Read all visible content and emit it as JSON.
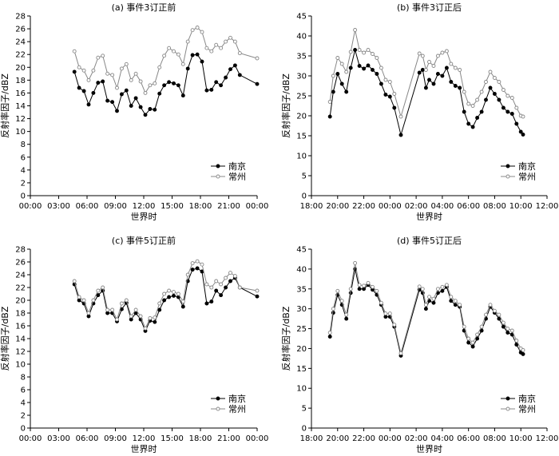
{
  "figure": {
    "panels": [
      {
        "title": "(a) 事件3订正前",
        "xlabel": "世界时",
        "ylabel": "反射率因子/dBZ",
        "yticks": [
          "0",
          "2",
          "4",
          "6",
          "8",
          "10",
          "12",
          "14",
          "16",
          "18",
          "20",
          "22",
          "24",
          "26",
          "28"
        ],
        "xticks": [
          "00:00",
          "03:00",
          "06:00",
          "09:00",
          "12:00",
          "15:00",
          "18:00",
          "21:00",
          "00:00"
        ],
        "legend": [
          "南京",
          "常州"
        ]
      },
      {
        "title": "(b) 事件3订正后",
        "xlabel": "世界时",
        "ylabel": "反射率因子/dBZ",
        "yticks": [
          "0",
          "5",
          "10",
          "15",
          "20",
          "25",
          "30",
          "35",
          "40",
          "45"
        ],
        "xticks": [
          "18:00",
          "20:00",
          "22:00",
          "00:00",
          "02:00",
          "04:00",
          "06:00",
          "08:00",
          "10:00",
          "12:00"
        ],
        "legend": [
          "南京",
          "常州"
        ]
      },
      {
        "title": "(c) 事件5订正前",
        "xlabel": "世界时",
        "ylabel": "反射率因子/dBZ",
        "yticks": [
          "0",
          "2",
          "4",
          "6",
          "8",
          "10",
          "12",
          "14",
          "16",
          "18",
          "20",
          "22",
          "24",
          "26",
          "28"
        ],
        "xticks": [
          "00:00",
          "03:00",
          "06:00",
          "09:00",
          "12:00",
          "15:00",
          "18:00",
          "21:00",
          "00:00"
        ],
        "legend": [
          "南京",
          "常州"
        ]
      },
      {
        "title": "(d) 事件5订正后",
        "xlabel": "世界时",
        "ylabel": "反射率因子/dBZ",
        "yticks": [
          "0",
          "5",
          "10",
          "15",
          "20",
          "25",
          "30",
          "35",
          "40",
          "45"
        ],
        "xticks": [
          "18:00",
          "20:00",
          "22:00",
          "00:00",
          "02:00",
          "04:00",
          "06:00",
          "08:00",
          "10:00",
          "12:00"
        ],
        "legend": [
          "南京",
          "常州"
        ]
      }
    ]
  },
  "chart_data": [
    {
      "type": "line",
      "title": "(a) 事件3订正前",
      "xlabel": "世界时",
      "ylabel": "反射率因子/dBZ",
      "xlim": [
        "00:00",
        "24:00"
      ],
      "ylim": [
        0,
        28
      ],
      "x": [
        "04:40",
        "05:10",
        "05:40",
        "06:10",
        "06:40",
        "07:10",
        "07:40",
        "08:10",
        "08:40",
        "09:10",
        "09:40",
        "10:10",
        "10:40",
        "11:10",
        "11:40",
        "12:10",
        "12:40",
        "13:10",
        "13:40",
        "14:10",
        "14:40",
        "15:10",
        "15:40",
        "16:10",
        "16:40",
        "17:10",
        "17:40",
        "18:10",
        "18:40",
        "19:10",
        "19:40",
        "20:10",
        "20:40",
        "21:10",
        "21:40",
        "22:10",
        "24:00"
      ],
      "series": [
        {
          "name": "南京",
          "color": "#000000",
          "values": [
            19.3,
            16.8,
            16.3,
            14.2,
            16.0,
            17.6,
            17.8,
            14.8,
            14.6,
            13.2,
            15.8,
            16.4,
            14.0,
            15.2,
            13.8,
            12.6,
            13.5,
            13.4,
            15.9,
            17.2,
            17.7,
            17.5,
            17.2,
            15.6,
            19.8,
            21.9,
            22.0,
            20.9,
            16.4,
            16.5,
            17.7,
            17.2,
            18.4,
            19.7,
            20.3,
            18.8,
            17.4
          ]
        },
        {
          "name": "常州",
          "color": "#888888",
          "values": [
            22.5,
            20.0,
            19.5,
            18.0,
            19.5,
            21.5,
            21.8,
            19.0,
            18.8,
            16.8,
            19.8,
            20.5,
            18.0,
            19.0,
            17.8,
            16.0,
            17.2,
            17.5,
            20.0,
            21.8,
            23.0,
            22.5,
            22.0,
            20.5,
            24.0,
            25.8,
            26.2,
            25.5,
            23.0,
            22.5,
            23.5,
            23.0,
            24.0,
            24.6,
            24.0,
            22.2,
            21.4
          ]
        }
      ]
    },
    {
      "type": "line",
      "title": "(b) 事件3订正后",
      "xlabel": "世界时",
      "ylabel": "反射率因子/dBZ",
      "xlim": [
        "18:00",
        "12:00"
      ],
      "ylim": [
        0,
        45
      ],
      "x": [
        "19:25",
        "19:40",
        "20:00",
        "20:20",
        "20:40",
        "21:00",
        "21:20",
        "21:40",
        "22:00",
        "22:20",
        "22:40",
        "23:00",
        "23:20",
        "23:40",
        "00:00",
        "00:20",
        "00:50",
        "02:15",
        "02:30",
        "02:45",
        "03:00",
        "03:20",
        "03:40",
        "04:00",
        "04:20",
        "04:40",
        "05:00",
        "05:20",
        "05:40",
        "06:00",
        "06:20",
        "06:40",
        "07:00",
        "07:20",
        "07:40",
        "08:00",
        "08:20",
        "08:40",
        "09:00",
        "09:20",
        "09:40",
        "10:00",
        "10:10"
      ],
      "series": [
        {
          "name": "南京",
          "color": "#000000",
          "values": [
            19.8,
            26.0,
            30.5,
            28.0,
            26.0,
            32.0,
            36.5,
            32.5,
            31.8,
            32.6,
            31.5,
            30.5,
            28.0,
            25.3,
            24.8,
            22.0,
            15.2,
            30.8,
            31.5,
            27.0,
            29.0,
            28.0,
            30.5,
            30.0,
            32.0,
            28.5,
            27.5,
            27.0,
            21.0,
            18.0,
            17.2,
            19.5,
            21.0,
            24.0,
            27.0,
            25.5,
            24.0,
            22.0,
            21.0,
            20.5,
            18.0,
            16.0,
            15.3
          ]
        },
        {
          "name": "常州",
          "color": "#888888",
          "values": [
            23.5,
            30.0,
            34.5,
            33.0,
            31.0,
            36.0,
            41.5,
            36.5,
            35.8,
            36.5,
            35.5,
            34.5,
            32.0,
            29.0,
            28.5,
            25.5,
            19.8,
            35.6,
            35.0,
            31.5,
            33.5,
            32.5,
            35.0,
            35.8,
            36.2,
            33.0,
            32.0,
            31.5,
            26.0,
            23.0,
            22.5,
            24.0,
            26.0,
            28.5,
            31.0,
            29.5,
            28.5,
            26.5,
            25.0,
            24.5,
            22.0,
            20.0,
            19.8
          ]
        }
      ]
    },
    {
      "type": "line",
      "title": "(c) 事件5订正前",
      "xlabel": "世界时",
      "ylabel": "反射率因子/dBZ",
      "xlim": [
        "00:00",
        "24:00"
      ],
      "ylim": [
        0,
        28
      ],
      "x": [
        "04:40",
        "05:10",
        "05:40",
        "06:10",
        "06:40",
        "07:10",
        "07:40",
        "08:10",
        "08:40",
        "09:10",
        "09:40",
        "10:10",
        "10:40",
        "11:10",
        "11:40",
        "12:10",
        "12:40",
        "13:10",
        "13:40",
        "14:10",
        "14:40",
        "15:10",
        "15:40",
        "16:10",
        "16:40",
        "17:10",
        "17:40",
        "18:10",
        "18:40",
        "19:10",
        "19:40",
        "20:10",
        "20:40",
        "21:10",
        "21:40",
        "22:10",
        "24:00"
      ],
      "series": [
        {
          "name": "南京",
          "color": "#000000",
          "values": [
            22.5,
            20.0,
            19.5,
            17.5,
            19.5,
            20.8,
            21.5,
            18.0,
            18.0,
            16.7,
            18.6,
            19.6,
            17.0,
            18.0,
            17.0,
            15.2,
            16.8,
            16.6,
            18.5,
            20.0,
            20.5,
            20.7,
            20.5,
            19.0,
            23.0,
            24.8,
            25.0,
            24.5,
            19.5,
            19.8,
            21.5,
            20.8,
            22.0,
            23.0,
            23.5,
            22.0,
            20.6
          ]
        },
        {
          "name": "常州",
          "color": "#888888",
          "values": [
            23.0,
            20.5,
            20.0,
            18.0,
            20.0,
            21.5,
            22.0,
            18.5,
            18.5,
            17.0,
            19.5,
            20.0,
            17.5,
            18.5,
            17.5,
            15.6,
            17.2,
            17.3,
            19.5,
            21.0,
            21.5,
            21.3,
            21.0,
            19.8,
            24.0,
            25.8,
            26.1,
            25.6,
            22.5,
            22.0,
            23.0,
            22.5,
            23.5,
            24.3,
            23.8,
            22.0,
            21.5
          ]
        }
      ]
    },
    {
      "type": "line",
      "title": "(d) 事件5订正后",
      "xlabel": "世界时",
      "ylabel": "反射率因子/dBZ",
      "xlim": [
        "18:00",
        "12:00"
      ],
      "ylim": [
        0,
        45
      ],
      "x": [
        "19:25",
        "19:40",
        "20:00",
        "20:20",
        "20:40",
        "21:00",
        "21:20",
        "21:40",
        "22:00",
        "22:20",
        "22:40",
        "23:00",
        "23:20",
        "23:40",
        "00:00",
        "00:20",
        "00:50",
        "02:15",
        "02:30",
        "02:45",
        "03:00",
        "03:20",
        "03:40",
        "04:00",
        "04:20",
        "04:40",
        "05:00",
        "05:20",
        "05:40",
        "06:00",
        "06:20",
        "06:40",
        "07:00",
        "07:20",
        "07:40",
        "08:00",
        "08:20",
        "08:40",
        "09:00",
        "09:20",
        "09:40",
        "10:00",
        "10:10"
      ],
      "series": [
        {
          "name": "南京",
          "color": "#000000",
          "values": [
            23.0,
            29.0,
            33.5,
            31.0,
            27.5,
            34.0,
            40.0,
            35.0,
            35.0,
            36.0,
            34.8,
            33.5,
            31.0,
            28.0,
            28.0,
            25.5,
            18.2,
            34.8,
            34.0,
            30.0,
            32.0,
            31.5,
            34.0,
            34.5,
            35.5,
            32.0,
            31.0,
            30.5,
            24.5,
            21.5,
            20.5,
            22.5,
            24.5,
            27.5,
            30.5,
            29.0,
            27.5,
            25.5,
            24.0,
            23.5,
            21.0,
            19.0,
            18.6
          ]
        },
        {
          "name": "常州",
          "color": "#888888",
          "values": [
            24.0,
            30.0,
            34.5,
            32.0,
            28.5,
            35.0,
            41.5,
            36.0,
            35.8,
            36.5,
            35.5,
            34.5,
            31.5,
            28.8,
            28.8,
            26.0,
            18.8,
            35.6,
            35.0,
            31.0,
            33.0,
            32.5,
            35.0,
            35.5,
            36.0,
            33.0,
            32.0,
            31.0,
            25.5,
            22.5,
            21.5,
            23.5,
            25.5,
            28.5,
            31.0,
            29.5,
            28.5,
            26.5,
            25.0,
            24.5,
            22.0,
            20.0,
            19.6
          ]
        }
      ]
    }
  ]
}
